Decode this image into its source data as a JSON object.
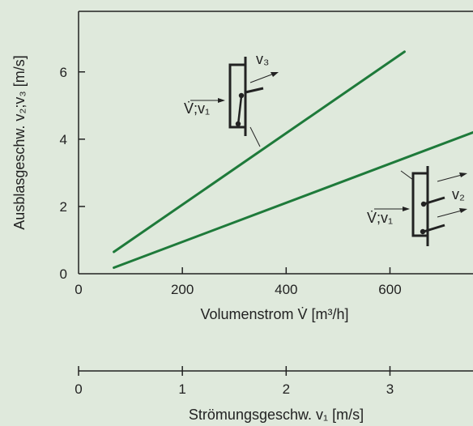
{
  "chart_data": {
    "type": "line",
    "xlabel": "Volumenstrom V̇ [m³/h]",
    "ylabel": "Ausblasgeschw. v₂;v₃ [m/s]",
    "xlim": [
      0,
      760
    ],
    "ylim": [
      0,
      7.8
    ],
    "x_ticks": [
      "0",
      "200",
      "400",
      "600"
    ],
    "x_tick_values": [
      0,
      200,
      400,
      600
    ],
    "y_ticks": [
      "0",
      "2",
      "4",
      "6"
    ],
    "y_tick_values": [
      0,
      2,
      4,
      6
    ],
    "grid": false,
    "series": [
      {
        "x": [
          68,
          628
        ],
        "y": [
          0.65,
          6.6
        ],
        "color": "#1e7a3a"
      },
      {
        "x": [
          68,
          760
        ],
        "y": [
          0.18,
          4.2
        ],
        "color": "#1e7a3a"
      }
    ],
    "secondary_axis": {
      "xlabel": "Strömungsgeschw. v₁ [m/s]",
      "ticks": [
        "0",
        "1",
        "2",
        "3"
      ],
      "tick_values": [
        0,
        1,
        2,
        3
      ],
      "xlim": [
        0,
        3.8
      ]
    },
    "annotations": {
      "upper": {
        "inlet": "V̇;v₁",
        "outlet": "v₃"
      },
      "lower": {
        "inlet": "V̇;v₁",
        "outlet": "v₂"
      }
    }
  },
  "colors": {
    "background": "#dfe9dc",
    "line": "#1e7a3a",
    "axis": "#222222"
  }
}
